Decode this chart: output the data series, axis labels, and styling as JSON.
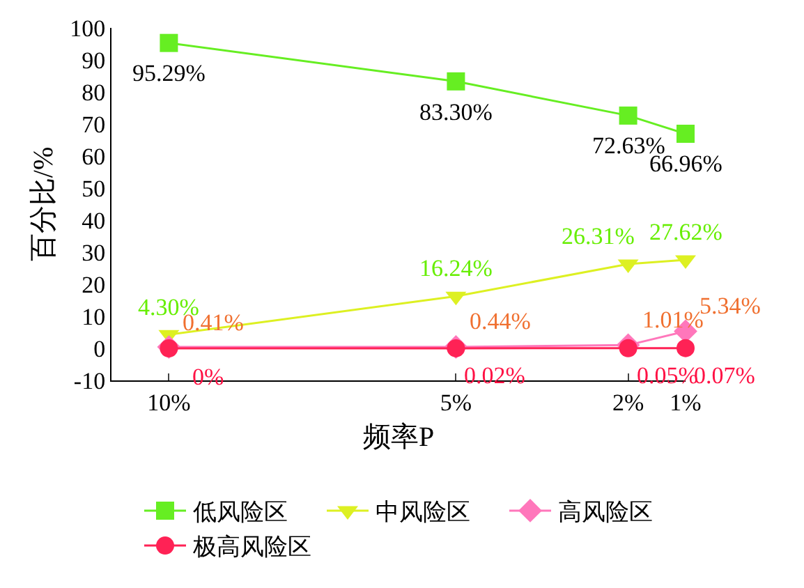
{
  "chart_data": {
    "type": "line",
    "xlabel": "频率P",
    "ylabel": "百分比/%",
    "x": [
      10,
      5,
      2,
      1
    ],
    "xlim": [
      11,
      1
    ],
    "xticks": [
      {
        "value": 10,
        "label": "10%"
      },
      {
        "value": 5,
        "label": "5%"
      },
      {
        "value": 2,
        "label": "2%"
      },
      {
        "value": 1,
        "label": "1%"
      }
    ],
    "ylim": [
      -10,
      100
    ],
    "yticks": [
      -10,
      0,
      10,
      20,
      30,
      40,
      50,
      60,
      70,
      80,
      90,
      100
    ],
    "legend": "bottom",
    "series": [
      {
        "name": "低风险区",
        "color": "#66ee22",
        "marker": "square",
        "values": [
          95.29,
          83.3,
          72.63,
          66.96
        ],
        "value_labels": [
          "95.29%",
          "83.30%",
          "72.63%",
          "66.96%"
        ]
      },
      {
        "name": "中风险区",
        "color": "#ddf022",
        "marker": "triangle",
        "values": [
          4.3,
          16.24,
          26.31,
          27.62
        ],
        "value_labels": [
          "4.30%",
          "16.24%",
          "26.31%",
          "27.62%"
        ]
      },
      {
        "name": "高风险区",
        "color": "#ff77bb",
        "marker": "diamond",
        "values": [
          0.41,
          0.44,
          1.01,
          5.34
        ],
        "value_labels": [
          "0.41%",
          "0.44%",
          "1.01%",
          "5.34%"
        ]
      },
      {
        "name": "极高风险区",
        "color": "#ff2255",
        "marker": "circle",
        "values": [
          0,
          0.02,
          0.05,
          0.07
        ],
        "value_labels": [
          "0%",
          "0.02%",
          "0.05%",
          "0.07%"
        ]
      }
    ]
  }
}
